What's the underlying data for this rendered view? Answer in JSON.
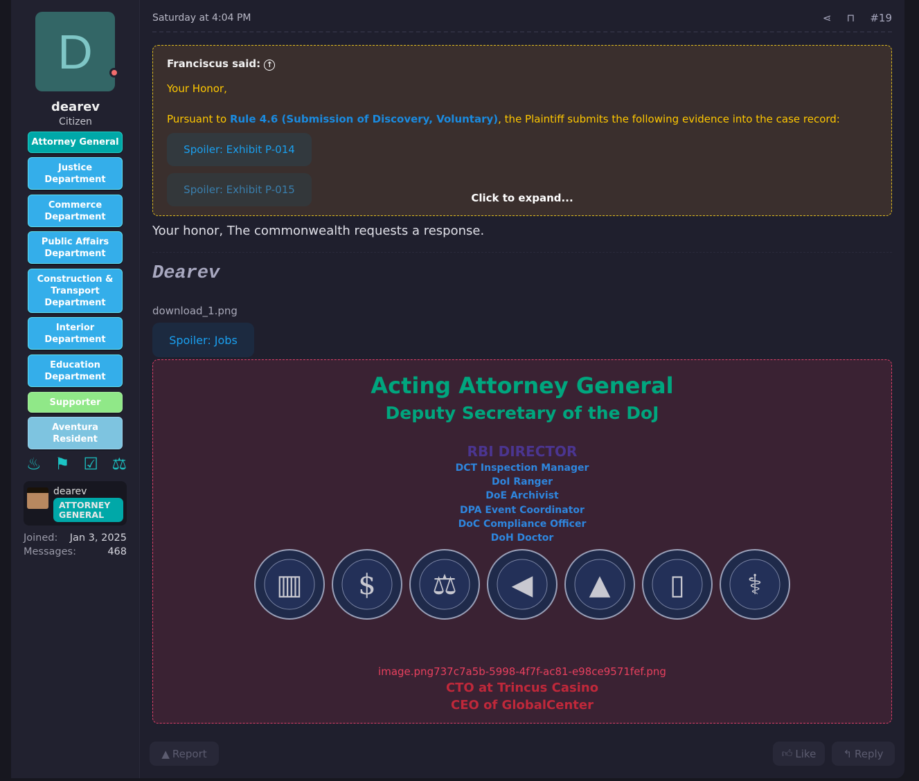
{
  "user": {
    "avatar_letter": "D",
    "name": "dearev",
    "title": "Citizen",
    "badges": [
      "Attorney General",
      "Justice Department",
      "Commerce Department",
      "Public Affairs Department",
      "Construction & Transport Department",
      "Interior Department",
      "Education Department",
      "Supporter",
      "Aventura Resident"
    ],
    "trophy_icons": [
      "birthday-cake-icon",
      "protester-icon",
      "ballot-box-icon",
      "scales-icon"
    ],
    "minecraft": {
      "name": "dearev",
      "rank": "ATTORNEY GENERAL"
    },
    "joined_label": "Joined:",
    "joined": "Jan 3, 2025",
    "messages_label": "Messages:",
    "messages": "468"
  },
  "post": {
    "date": "Saturday at 4:04 PM",
    "number": "#19",
    "quote": {
      "attribution": "Franciscus said:",
      "greeting": "Your Honor,",
      "text_before": "Pursuant to ",
      "rule_link": "Rule 4.6 (Submission of Discovery, Voluntary)",
      "text_after": ", the Plaintiff submits the following evidence into the case record:",
      "spoilers": [
        "Spoiler: Exhibit P-014",
        "Spoiler: Exhibit P-015"
      ],
      "expand": "Click to expand..."
    },
    "body": "Your honor, The commonwealth requests a response."
  },
  "signature": {
    "name": "Dearev",
    "file": "download_1.png",
    "spoiler": "Spoiler: Jobs",
    "title1": "Acting Attorney General",
    "title2": "Deputy Secretary of the DoJ",
    "rbi": "RBI DIRECTOR",
    "roles": [
      "DCT Inspection Manager",
      "DoI Ranger",
      "DoE Archivist",
      "DPA Event Coordinator",
      "DoC Compliance Officer",
      "DoH Doctor"
    ],
    "seals": [
      "SEAL OF THE DEPARTMENT OF CONSTRUCTION & TRANSPORTATION",
      "SEAL OF THE DEPARTMENT OF COMMERCE",
      "SEAL OF THE DEPARTMENT OF JUSTICE",
      "SEAL OF THE DEPARTMENT OF PUBLIC AFFAIRS",
      "SEAL OF THE DEPARTMENT OF THE INTERIOR",
      "SEAL OF THE DEPARTMENT OF EDUCATION",
      "SEAL OF THE DEPARTMENT OF HEALTH"
    ],
    "image_name": "image.png737c7a5b-5998-4f7f-ac81-e98ce9571fef.png",
    "extra1": "CTO at Trincus Casino",
    "extra2": "CEO of GlobalCenter",
    "colors": {
      "green": "#00a67e",
      "purple": "#4b3590",
      "blue": "#2e86de",
      "red": "#c0283a",
      "pink": "#e8405e"
    }
  },
  "actions": {
    "report": "Report",
    "like": "Like",
    "reply": "Reply"
  }
}
